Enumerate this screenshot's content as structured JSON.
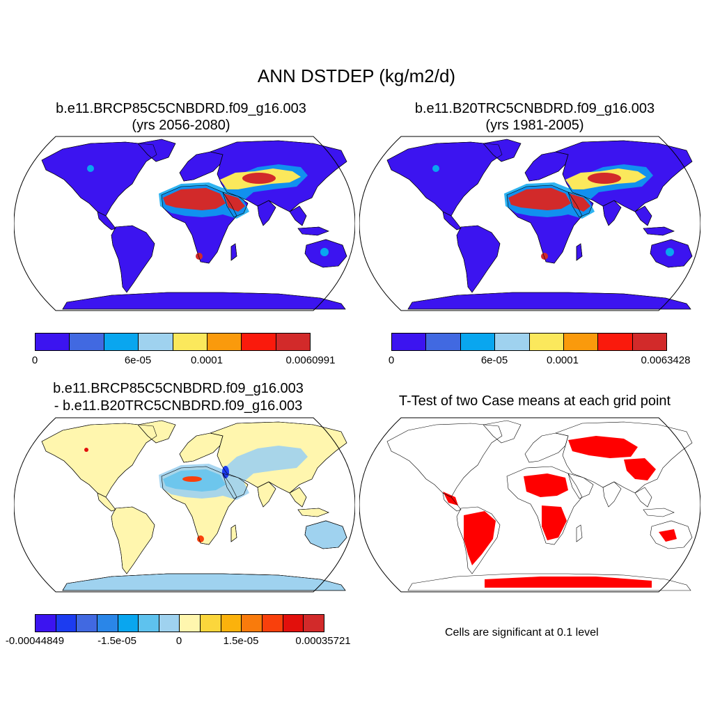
{
  "title": "ANN DSTDEP (kg/m2/d)",
  "panels": [
    {
      "id": "top-left",
      "title_line1": "b.e11.BRCP85C5CNBDRD.f09_g16.003",
      "title_line2": "(yrs 2056-2080)",
      "colorbar": {
        "colors": [
          "#3c14f0",
          "#4169e1",
          "#09a6ef",
          "#9fd2ef",
          "#fbe85c",
          "#fa9a0c",
          "#fa1a0c",
          "#d22a2a"
        ],
        "labels": [
          "0",
          "6e-05",
          "0.0001",
          "0.0060991"
        ]
      }
    },
    {
      "id": "top-right",
      "title_line1": "b.e11.B20TRC5CNBDRD.f09_g16.003",
      "title_line2": "(yrs 1981-2005)",
      "colorbar": {
        "colors": [
          "#3c14f0",
          "#4169e1",
          "#09a6ef",
          "#9fd2ef",
          "#fbe85c",
          "#fa9a0c",
          "#fa1a0c",
          "#d22a2a"
        ],
        "labels": [
          "0",
          "6e-05",
          "0.0001",
          "0.0063428"
        ]
      }
    },
    {
      "id": "bottom-left",
      "title_line1": "b.e11.BRCP85C5CNBDRD.f09_g16.003",
      "title_line2": "- b.e11.B20TRC5CNBDRD.f09_g16.003",
      "colorbar": {
        "colors": [
          "#3c14f0",
          "#1c3cf0",
          "#4169e1",
          "#2a86e8",
          "#09a6ef",
          "#5ec2ee",
          "#9fd2ef",
          "#fff6ae",
          "#fbd63c",
          "#fbb20c",
          "#f97b0c",
          "#f9400c",
          "#e2100c",
          "#d22a2a"
        ],
        "labels": [
          "-0.00044849",
          "-1.5e-05",
          "0",
          "1.5e-05",
          "0.00035721"
        ]
      }
    },
    {
      "id": "bottom-right",
      "title_line1": "T-Test of two Case means at each grid point",
      "note": "Cells are significant at 0.1 level"
    }
  ],
  "map_colors": {
    "ocean": "#ffffff",
    "land_low": "#3c14f0",
    "dust_mid": "#09a6ef",
    "dust_light": "#9fd2ef",
    "dust_yellow": "#fbe85c",
    "dust_high": "#d22a2a",
    "diff_neutral": "#fff6ae",
    "diff_neg": "#9fd2ef",
    "signif": "#ff0000"
  }
}
